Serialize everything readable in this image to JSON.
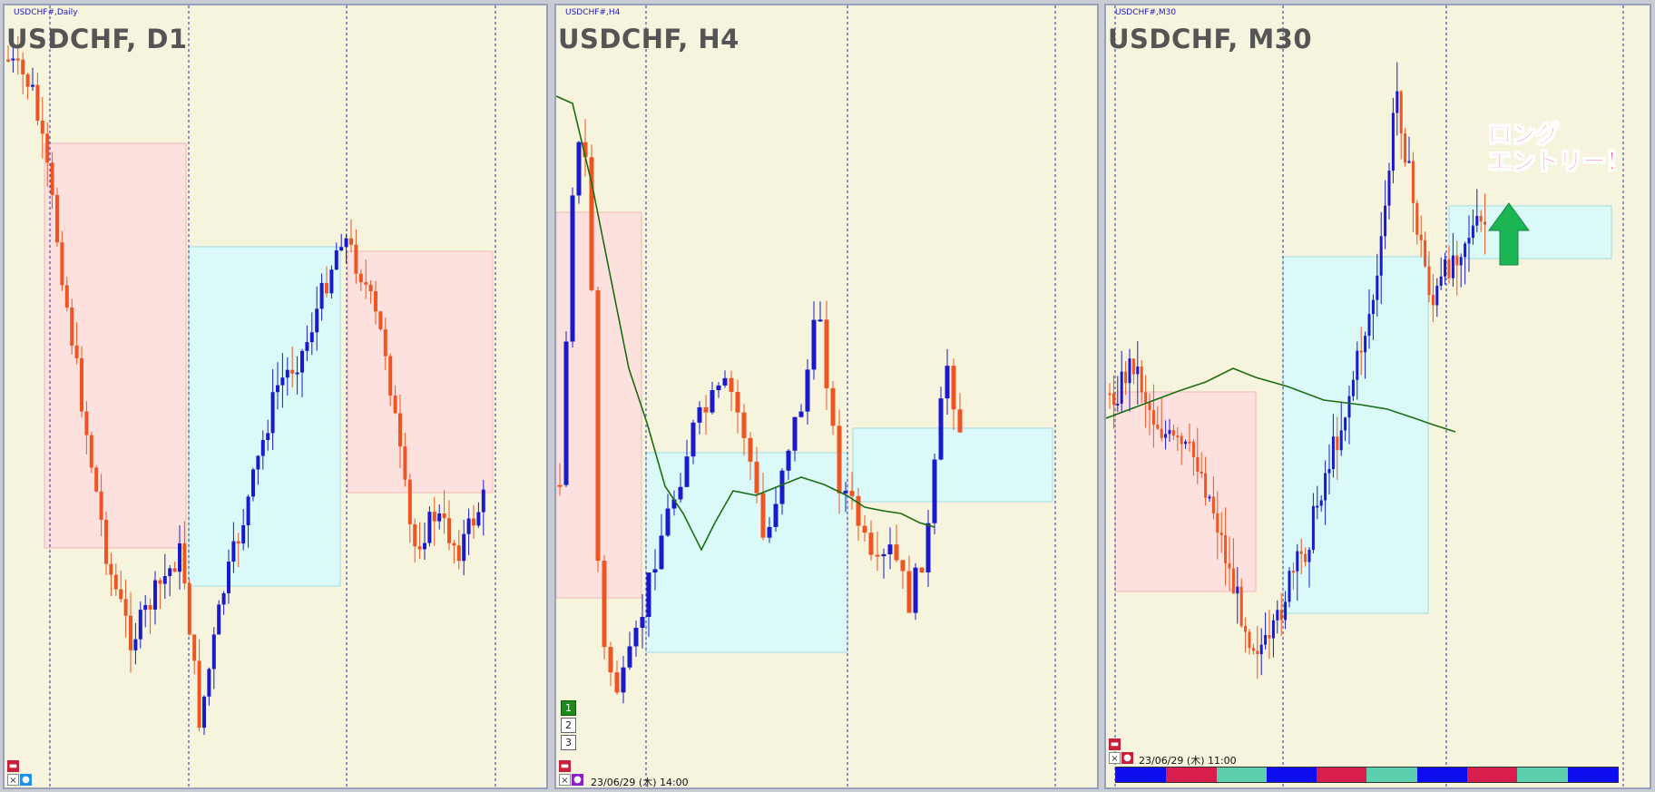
{
  "panels": [
    {
      "mini_title": "USDCHF#,Daily",
      "title": "USDCHF, D1"
    },
    {
      "mini_title": "USDCHF#,H4",
      "title": "USDCHF, H4",
      "timestamp": "23/06/29 (木) 14:00",
      "tabs": [
        "1",
        "2",
        "3"
      ]
    },
    {
      "mini_title": "USDCHF#,M30",
      "title": "USDCHF, M30",
      "timestamp": "23/06/29 (木) 11:00"
    }
  ],
  "annotation": {
    "line1": "ロング",
    "line2": "エントリー！"
  },
  "colors": {
    "background": "#f6f4dc",
    "bull_candle": "#1a1acc",
    "bear_candle": "#ee5522",
    "pink_zone": "#fde1de",
    "cyan_zone": "#dcf9f9",
    "moving_average": "#1a6e10",
    "entry_arrow": "#1bb554",
    "annotation_text": "#e8206e"
  },
  "strength_bar": [
    "blue",
    "red",
    "teal",
    "blue",
    "red",
    "teal",
    "blue",
    "red",
    "teal",
    "blue"
  ]
}
